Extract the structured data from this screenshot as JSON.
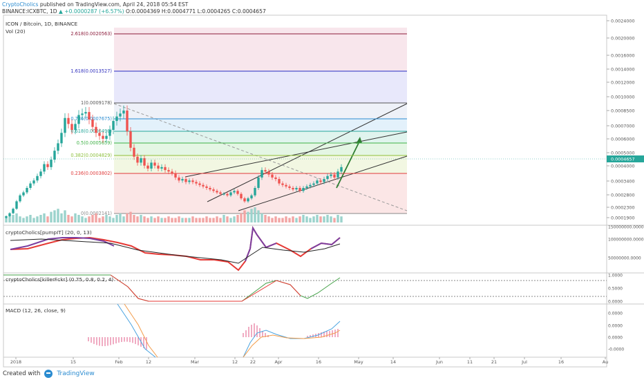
{
  "header": {
    "author": "CryptoCholics",
    "published": " published on TradingView.com, April 24, 2018 05:54 EST",
    "symbol": "BINANCE:ICXBTC, 1D",
    "change": "▲ +0.0000287 (+6.57%)",
    "ohlc": "O:0.0004369 H:0.0004771 L:0.0004265 C:0.0004657"
  },
  "footer": {
    "created": "Created with",
    "brand": "TradingView"
  },
  "chart_data": [
    {
      "type": "candlestick",
      "title": "ICON / Bitcoin, 1D, BINANCE",
      "subtitle": "Vol (20)",
      "y_ticks": [
        "0.0024000",
        "0.0020000",
        "0.0016000",
        "0.0014000",
        "0.0012000",
        "0.0010000",
        "0.0008500",
        "0.0007000",
        "0.0006000",
        "0.0005000",
        "0.0004000",
        "0.0003400",
        "0.0002800",
        "0.0002300",
        "0.0001900"
      ],
      "last_price": "0.0004657",
      "x_ticks": [
        "2018",
        "15",
        "Feb",
        "12",
        "Mar",
        "12",
        "22",
        "Apr",
        "16",
        "May",
        "14",
        "Jun",
        "11",
        "21",
        "Jul",
        "16",
        "Au"
      ],
      "fib_levels": [
        {
          "label": "2.618(0.0020563)",
          "color": "#8b1a3a"
        },
        {
          "label": "1.618(0.0013527)",
          "color": "#2d2dbd"
        },
        {
          "label": "1(0.0009178)",
          "color": "#555555"
        },
        {
          "label": "0.786(0.0007675)",
          "color": "#2a8bd0"
        },
        {
          "label": "0.618(0.0006490)",
          "color": "#26a69a"
        },
        {
          "label": "0.5(0.0005659)",
          "color": "#3cb043"
        },
        {
          "label": "0.382(0.0004829)",
          "color": "#8bbf3b"
        },
        {
          "label": "0.236(0.0003802)",
          "color": "#e03a3a"
        },
        {
          "label": "0(0.0002141)",
          "color": "#888888"
        }
      ],
      "closes": [
        0.00014,
        0.00016,
        0.00019,
        0.00024,
        0.00028,
        0.0003,
        0.00033,
        0.00036,
        0.00038,
        0.00041,
        0.00044,
        0.00049,
        0.00047,
        0.00052,
        0.00058,
        0.00063,
        0.0007,
        0.0008,
        0.00076,
        0.00072,
        0.00076,
        0.00082,
        0.00083,
        0.00084,
        0.00079,
        0.00074,
        0.0007,
        0.00068,
        0.00066,
        0.00068,
        0.00072,
        0.00078,
        0.00081,
        0.00083,
        0.00085,
        0.00071,
        0.0006,
        0.00054,
        0.0005,
        0.00053,
        0.00048,
        0.00046,
        0.0005,
        0.00048,
        0.00046,
        0.00047,
        0.00045,
        0.00044,
        0.00043,
        0.0004,
        0.00038,
        0.00039,
        0.00037,
        0.00038,
        0.00037,
        0.00036,
        0.00035,
        0.00034,
        0.00033,
        0.00032,
        0.00031,
        0.0003,
        0.00029,
        0.00029,
        0.00028,
        0.0003,
        0.00031,
        0.00029,
        0.00026,
        0.00024,
        0.00026,
        0.00028,
        0.00033,
        0.0004,
        0.00045,
        0.00044,
        0.00042,
        0.0004,
        0.00039,
        0.00036,
        0.00035,
        0.00034,
        0.00033,
        0.00032,
        0.00033,
        0.00031,
        0.00033,
        0.00034,
        0.00035,
        0.00036,
        0.00038,
        0.00037,
        0.00039,
        0.00041,
        0.00042,
        0.0004,
        0.00044,
        0.00047
      ],
      "volumes": [
        0.3,
        0.4,
        0.5,
        0.6,
        0.4,
        0.3,
        0.4,
        0.5,
        0.3,
        0.4,
        0.5,
        0.6,
        0.4,
        0.7,
        0.8,
        0.9,
        0.6,
        0.8,
        0.5,
        0.4,
        0.6,
        0.5,
        0.4,
        0.3,
        0.4,
        0.5,
        0.6,
        0.3,
        0.4,
        0.5,
        0.4,
        0.3,
        0.5,
        0.6,
        0.4,
        0.6,
        0.7,
        0.5,
        0.4,
        0.5,
        0.4,
        0.3,
        0.4,
        0.3,
        0.4,
        0.3,
        0.3,
        0.4,
        0.3,
        0.3,
        0.4,
        0.3,
        0.3,
        0.3,
        0.4,
        0.3,
        0.3,
        0.3,
        0.4,
        0.3,
        0.3,
        0.4,
        0.3,
        0.5,
        0.4,
        0.3,
        0.4,
        0.5,
        0.6,
        0.8,
        0.7,
        0.9,
        1.0,
        0.8,
        0.6,
        0.5,
        0.4,
        0.3,
        0.4,
        0.3,
        0.3,
        0.4,
        0.3,
        0.4,
        0.3,
        0.4,
        0.5,
        0.4,
        0.3,
        0.4,
        0.5,
        0.4,
        0.4,
        0.5,
        0.4,
        0.3,
        0.5,
        0.4
      ]
    },
    {
      "type": "line",
      "title": "cryptoCholics[pumpIT] (20, 0, 13)",
      "y_ticks": [
        "150000000.0000",
        "100000000.0000",
        "50000000.0000"
      ]
    },
    {
      "type": "line",
      "title": "cryptoCholics[killerFckr] (0.75, 0.8, 0.2, 4)",
      "y_ticks": [
        "1.0000",
        "0.5000",
        "0.0000"
      ]
    },
    {
      "type": "line",
      "title": "MACD (12, 26, close, 9)",
      "y_ticks": [
        "0.0000",
        "0.0000",
        "0.0000",
        "-0.0000"
      ]
    }
  ]
}
